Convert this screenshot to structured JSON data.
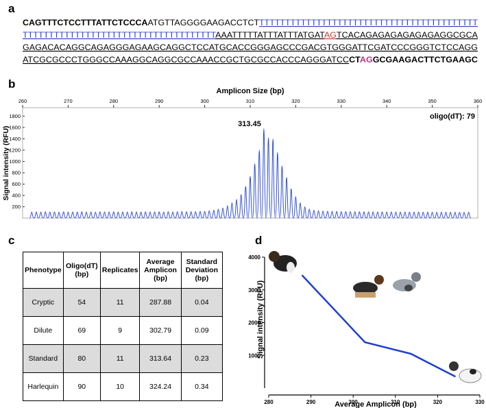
{
  "panel_labels": [
    "a",
    "b",
    "c",
    "d"
  ],
  "sequence": {
    "lines": [
      [
        {
          "text": "CAGTTTCTCCTTTATTCTCCCA",
          "bold": true
        },
        {
          "text": "ATGTTAGGGGAAGACCTCT"
        },
        {
          "text": "TTTTTTTTTTTTTTTTTTTTTTTTTTTTTTTTTTTTTTTTTT",
          "color": "#2b3fcc",
          "underline": true
        }
      ],
      [
        {
          "text": "TTTTTTTTTTTTTTTTTTTTTTTTTTTTTTTTTTTTT",
          "color": "#2b3fcc",
          "underline": true
        },
        {
          "text": "AAATTTTTATTTATTTATGAT",
          "underline": true
        },
        {
          "text": "AG",
          "color": "#c0392b",
          "underline": true
        },
        {
          "text": "TCACAGAGAGAGAGAGAGGCGCA",
          "underline": true
        }
      ],
      [
        {
          "text": "GAGACACAGGCAGAGGGAGAAGCAGGCTCCATGCACCGGGAGCCCGACGTGGGATTCGATCCCGGGTCTCCAGG",
          "underline": true
        }
      ],
      [
        {
          "text": "ATCGCGCCCTGGGCCAAAGGCAGGCGCCAAACCGCTGCGCCACCCAGGGATCC",
          "underline": true
        },
        {
          "text": "CT",
          "bold": true
        },
        {
          "text": "AG",
          "bold": true,
          "color": "#b03a8a"
        },
        {
          "text": "GCGAAGACTTCTGAAGC",
          "bold": true
        }
      ]
    ]
  },
  "chart_data": [
    {
      "type": "peaks",
      "title": "Amplicon Size (bp)",
      "y_label": "Signal intensity (RFU)",
      "annotations": [
        "313.45",
        "oligo(dT): 79"
      ],
      "x": [
        262,
        263,
        264,
        265,
        266,
        267,
        268,
        269,
        270,
        271,
        272,
        273,
        274,
        275,
        276,
        277,
        278,
        279,
        280,
        281,
        282,
        283,
        284,
        285,
        286,
        287,
        288,
        289,
        290,
        291,
        292,
        293,
        294,
        295,
        296,
        297,
        298,
        299,
        300,
        301,
        302,
        303,
        304,
        305,
        306,
        307,
        308,
        309,
        310,
        311,
        312,
        313,
        314,
        315,
        316,
        317,
        318,
        319,
        320,
        321,
        322,
        323,
        324,
        325,
        326,
        327,
        328,
        329,
        330,
        331,
        332,
        333,
        334,
        335,
        336,
        337,
        338,
        339,
        340,
        341,
        342,
        343,
        344,
        345,
        346,
        347,
        348,
        349,
        350,
        351,
        352,
        353,
        354,
        355,
        356,
        357,
        358
      ],
      "values": [
        105,
        110,
        108,
        112,
        106,
        110,
        104,
        112,
        108,
        110,
        106,
        112,
        108,
        110,
        105,
        112,
        110,
        108,
        112,
        106,
        110,
        108,
        112,
        110,
        106,
        112,
        108,
        110,
        112,
        108,
        114,
        110,
        112,
        115,
        112,
        116,
        114,
        118,
        120,
        130,
        140,
        160,
        180,
        220,
        270,
        330,
        420,
        560,
        740,
        960,
        1200,
        1580,
        1420,
        1400,
        1160,
        920,
        720,
        520,
        380,
        270,
        200,
        160,
        140,
        130,
        125,
        122,
        120,
        118,
        116,
        115,
        114,
        113,
        112,
        112,
        111,
        110,
        110,
        109,
        108,
        110,
        108,
        107,
        108,
        106,
        107,
        106,
        105,
        106,
        105,
        104,
        105,
        104,
        103,
        104,
        103,
        102,
        103
      ],
      "color": "#1f3fd1",
      "xlim": [
        260,
        360
      ],
      "xticks": [
        260,
        270,
        280,
        290,
        300,
        310,
        320,
        330,
        340,
        350,
        360
      ],
      "ylim": [
        0,
        1950
      ],
      "yticks": [
        200,
        400,
        600,
        800,
        1000,
        1200,
        1400,
        1600,
        1800
      ]
    },
    {
      "type": "line",
      "x_label": "Average Amplicon (bp)",
      "y_label": "Signal intensity (RFU)",
      "x": [
        287.88,
        302.79,
        313.64,
        324.24
      ],
      "values": [
        3450,
        1400,
        1050,
        350
      ],
      "color": "#1f3fd1",
      "xlim": [
        280,
        330
      ],
      "xticks": [
        280,
        290,
        300,
        310,
        320,
        330
      ],
      "ylim": [
        0,
        4000
      ],
      "yticks": [
        1000,
        2000,
        3000,
        4000
      ]
    }
  ],
  "table": {
    "header": [
      "Phenotype",
      "Oligo(dT) (bp)",
      "Replicates",
      "Average Amplicon (bp)",
      "Standard Deviation (bp)"
    ],
    "rows": [
      [
        "Cryptic",
        54,
        11,
        287.88,
        0.04
      ],
      [
        "Dilute",
        69,
        9,
        302.79,
        0.09
      ],
      [
        "Standard",
        80,
        11,
        313.64,
        0.23
      ],
      [
        "Harlequin",
        90,
        10,
        324.24,
        0.34
      ]
    ]
  }
}
